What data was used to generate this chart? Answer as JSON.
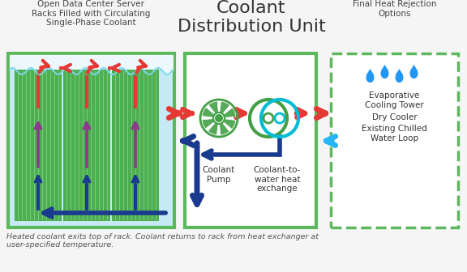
{
  "title_center": "Coolant\nDistribution Unit",
  "left_title": "Open Data Center Server\nRacks Filled with Circulating\nSingle-Phase Coolant",
  "right_title": "Final Heat Rejection\nOptions",
  "footer": "Heated coolant exits top of rack. Coolant returns to rack from heat exchanger at\nuser-specified temperature.",
  "coolant_pump_label": "Coolant\nPump",
  "heat_exchange_label": "Coolant-to-\nwater heat\nexchange",
  "right_labels": [
    "Evaporative\nCooling Tower",
    "Dry Cooler",
    "Existing Chilled\nWater Loop"
  ],
  "color_green_border": "#5cb85c",
  "color_light_blue_bg": "#c5eaf5",
  "color_dark_green_rack": "#4caf50",
  "color_rack_stripe": "#66bb6a",
  "color_red": "#e53935",
  "color_blue_dark": "#1a3a8f",
  "color_blue_light": "#29b6f6",
  "color_purple": "#8b3a8b",
  "color_fan_green": "#43a047",
  "color_water_blue": "#2196f3",
  "color_hx_blue": "#00bcd4",
  "bg_color": "#f5f5f5"
}
